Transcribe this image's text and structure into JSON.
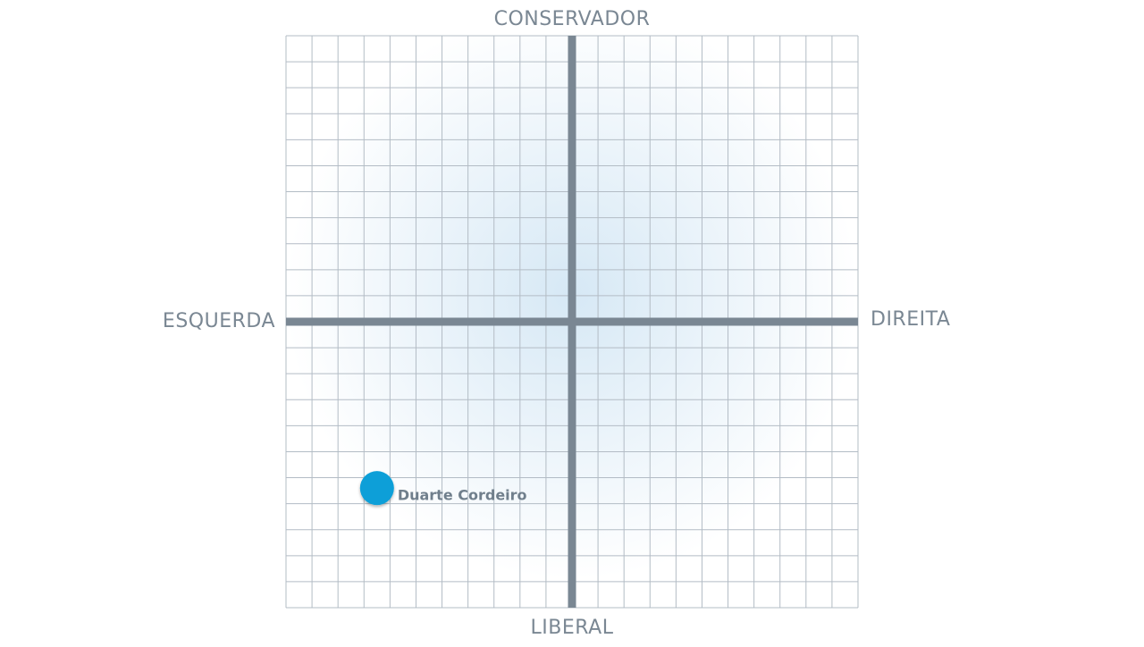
{
  "chart_data": {
    "type": "scatter",
    "y_label_top": "CONSERVADOR",
    "y_label_bottom": "LIBERAL",
    "x_label_left": "ESQUERDA",
    "x_label_right": "DIREITA",
    "xlim": [
      -11,
      11
    ],
    "ylim": [
      -11,
      11
    ],
    "grid": true,
    "series": [
      {
        "name": "Duarte Cordeiro",
        "color": "#0a9fd8",
        "x": [
          -7.5
        ],
        "values": [
          -6.4
        ]
      }
    ]
  }
}
